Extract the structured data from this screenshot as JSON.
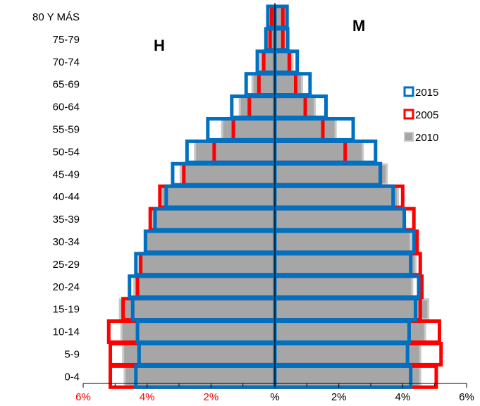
{
  "chart_data": {
    "type": "bar",
    "subtype": "population-pyramid",
    "title": "",
    "left_label": "H",
    "right_label": "M",
    "categories": [
      "0-4",
      "5-9",
      "10-14",
      "15-19",
      "20-24",
      "25-29",
      "30-34",
      "35-39",
      "40-44",
      "45-49",
      "50-54",
      "55-59",
      "60-64",
      "65-69",
      "70-74",
      "75-79",
      "80 Y MÁS"
    ],
    "x_ticks": [
      "6%",
      "4%",
      "2%",
      "%",
      "2%",
      "4%",
      "6%"
    ],
    "x_tick_colors": [
      "#ff0000",
      "#ff0000",
      "#ff0000",
      "#000000",
      "#000000",
      "#000000",
      "#000000"
    ],
    "xlim": [
      -6,
      6
    ],
    "legend_position": "right",
    "series": [
      {
        "name": "2015",
        "color": "#0070c0",
        "style": "outline",
        "male": [
          4.35,
          4.25,
          4.3,
          4.45,
          4.55,
          4.35,
          4.05,
          3.75,
          3.4,
          3.2,
          2.75,
          2.1,
          1.35,
          0.9,
          0.55,
          0.28,
          0.22
        ],
        "female": [
          4.25,
          4.15,
          4.2,
          4.4,
          4.5,
          4.25,
          4.35,
          4.05,
          3.7,
          3.3,
          3.15,
          2.45,
          1.6,
          1.1,
          0.7,
          0.4,
          0.38
        ]
      },
      {
        "name": "2005",
        "color": "#ff0000",
        "style": "outline",
        "male": [
          5.15,
          5.15,
          5.2,
          4.75,
          4.3,
          4.2,
          4.05,
          3.9,
          3.6,
          2.85,
          1.9,
          1.3,
          0.8,
          0.5,
          0.35,
          0.15,
          0.1
        ],
        "female": [
          5.05,
          5.2,
          5.15,
          4.55,
          4.6,
          4.55,
          4.45,
          4.35,
          4.0,
          3.3,
          2.2,
          1.5,
          0.95,
          0.65,
          0.45,
          0.25,
          0.25
        ]
      },
      {
        "name": "2010",
        "color": "#a0a0a0",
        "style": "fill",
        "male": [
          4.7,
          4.75,
          4.8,
          4.85,
          4.4,
          4.25,
          4.05,
          3.85,
          3.55,
          2.95,
          2.5,
          1.65,
          1.1,
          0.7,
          0.45,
          0.22,
          0.18
        ],
        "female": [
          4.55,
          4.55,
          4.7,
          4.8,
          4.3,
          4.4,
          4.25,
          4.05,
          3.85,
          3.5,
          2.75,
          1.9,
          1.25,
          0.85,
          0.55,
          0.32,
          0.32
        ]
      }
    ]
  }
}
